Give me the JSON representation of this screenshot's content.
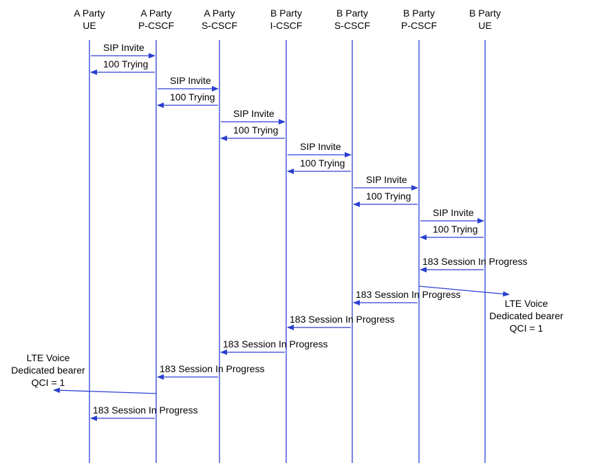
{
  "colors": {
    "line": "#2a3fd1",
    "text": "#000000",
    "background": "#ffffff"
  },
  "participants": [
    {
      "line1": "A Party",
      "line2": "UE"
    },
    {
      "line1": "A Party",
      "line2": "P-CSCF"
    },
    {
      "line1": "A Party",
      "line2": "S-CSCF"
    },
    {
      "line1": "B Party",
      "line2": "I-CSCF"
    },
    {
      "line1": "B Party",
      "line2": "S-CSCF"
    },
    {
      "line1": "B Party",
      "line2": "P-CSCF"
    },
    {
      "line1": "B Party",
      "line2": "UE"
    }
  ],
  "messages": [
    {
      "label": "SIP Invite",
      "from": 0,
      "to": 1
    },
    {
      "label": "100 Trying",
      "from": 1,
      "to": 0
    },
    {
      "label": "SIP Invite",
      "from": 1,
      "to": 2
    },
    {
      "label": "100 Trying",
      "from": 2,
      "to": 1
    },
    {
      "label": "SIP Invite",
      "from": 2,
      "to": 3
    },
    {
      "label": "100 Trying",
      "from": 3,
      "to": 2
    },
    {
      "label": "SIP Invite",
      "from": 3,
      "to": 4
    },
    {
      "label": "100 Trying",
      "from": 4,
      "to": 3
    },
    {
      "label": "SIP Invite",
      "from": 4,
      "to": 5
    },
    {
      "label": "100 Trying",
      "from": 5,
      "to": 4
    },
    {
      "label": "SIP Invite",
      "from": 5,
      "to": 6
    },
    {
      "label": "100 Trying",
      "from": 6,
      "to": 5
    },
    {
      "label": "183 Session In Progress",
      "from": 6,
      "to": 5
    },
    {
      "label": "183 Session In Progress",
      "from": 5,
      "to": 4
    },
    {
      "label": "183 Session In Progress",
      "from": 4,
      "to": 3
    },
    {
      "label": "183 Session In Progress",
      "from": 3,
      "to": 2
    },
    {
      "label": "183 Session In Progress",
      "from": 2,
      "to": 1
    },
    {
      "label": "183 Session In Progress",
      "from": 1,
      "to": 0
    }
  ],
  "bearer_notes": [
    {
      "lines": [
        "LTE Voice",
        "Dedicated bearer",
        "QCI = 1"
      ],
      "from": 5
    },
    {
      "lines": [
        "LTE Voice",
        "Dedicated bearer",
        "QCI = 1"
      ],
      "from": 1
    }
  ]
}
